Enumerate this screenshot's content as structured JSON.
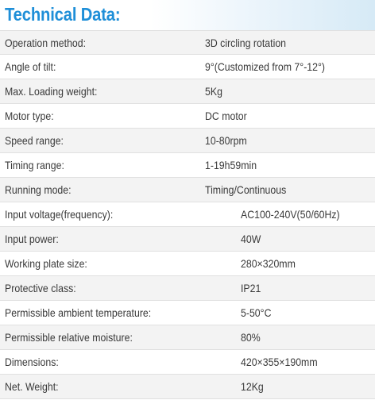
{
  "title": "Technical Data:",
  "rows": [
    {
      "label": "Operation method:",
      "value": "3D circling rotation"
    },
    {
      "label": "Angle of tilt:",
      "value": "9°(Customized from 7°-12°)"
    },
    {
      "label": "Max. Loading weight:",
      "value": "5Kg"
    },
    {
      "label": "Motor type:",
      "value": "DC motor"
    },
    {
      "label": "Speed range:",
      "value": "10-80rpm"
    },
    {
      "label": "Timing range:",
      "value": "1-19h59min"
    },
    {
      "label": "Running mode:",
      "value": "Timing/Continuous"
    },
    {
      "label": "Input voltage(frequency):",
      "value": "AC100-240V(50/60Hz)"
    },
    {
      "label": "Input power:",
      "value": "40W"
    },
    {
      "label": "Working plate size:",
      "value": "280×320mm"
    },
    {
      "label": "Protective class:",
      "value": "IP21"
    },
    {
      "label": "Permissible ambient temperature:",
      "value": "5-50°C"
    },
    {
      "label": "Permissible relative moisture:",
      "value": "80%"
    },
    {
      "label": "Dimensions:",
      "value": "420×355×190mm"
    },
    {
      "label": "Net. Weight:",
      "value": "12Kg"
    }
  ]
}
